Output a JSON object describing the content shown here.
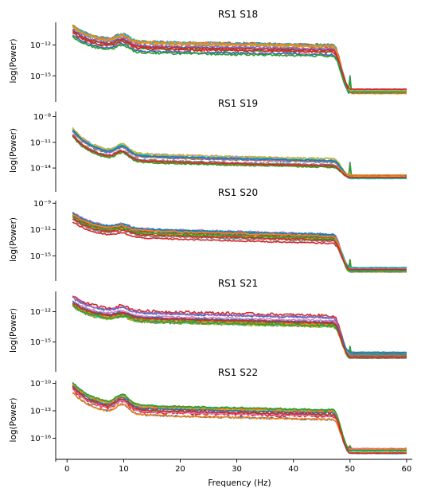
{
  "chart_data": [
    {
      "type": "line",
      "title": "RS1 S18",
      "ylabel": "log(Power)",
      "yscale": "log",
      "y_ticks": [
        {
          "exp": -12,
          "label": "10⁻¹²"
        },
        {
          "exp": -15,
          "label": "10⁻¹⁵"
        }
      ],
      "ylim_exp": [
        -17.3,
        -9.8
      ],
      "profile": {
        "start": -10.6,
        "alpha_peak": 0.6,
        "plateau": -12.1,
        "plateau_end": -12.5,
        "line_noise_spike": 1.5,
        "floor": -16.5
      },
      "series_count": 14
    },
    {
      "type": "line",
      "title": "RS1 S19",
      "ylabel": "log(Power)",
      "yscale": "log",
      "y_ticks": [
        {
          "exp": -8,
          "label": "10⁻⁸"
        },
        {
          "exp": -11,
          "label": "10⁻¹¹"
        },
        {
          "exp": -14,
          "label": "10⁻¹⁴"
        }
      ],
      "ylim_exp": [
        -16.5,
        -7.4
      ],
      "profile": {
        "start": -9.8,
        "alpha_peak": 0.9,
        "plateau": -12.7,
        "plateau_end": -13.4,
        "line_noise_spike": 1.5,
        "floor": -15.0
      },
      "series_count": 14
    },
    {
      "type": "line",
      "title": "RS1 S20",
      "ylabel": "log(Power)",
      "yscale": "log",
      "y_ticks": [
        {
          "exp": -9,
          "label": "10⁻⁹"
        },
        {
          "exp": -12,
          "label": "10⁻¹²"
        },
        {
          "exp": -15,
          "label": "10⁻¹⁵"
        }
      ],
      "ylim_exp": [
        -17.6,
        -8.7
      ],
      "profile": {
        "start": -10.5,
        "alpha_peak": 0.4,
        "plateau": -12.2,
        "plateau_end": -13.0,
        "line_noise_spike": 1.3,
        "floor": -16.6
      },
      "series_count": 14
    },
    {
      "type": "line",
      "title": "RS1 S21",
      "ylabel": "log(Power)",
      "yscale": "log",
      "y_ticks": [
        {
          "exp": -12,
          "label": "10⁻¹²"
        },
        {
          "exp": -15,
          "label": "10⁻¹⁵"
        }
      ],
      "ylim_exp": [
        -17.7,
        -10.0
      ],
      "profile": {
        "start": -10.9,
        "alpha_peak": 0.4,
        "plateau": -12.3,
        "plateau_end": -12.9,
        "line_noise_spike": 0.8,
        "floor": -16.3
      },
      "series_count": 14
    },
    {
      "type": "line",
      "title": "RS1 S22",
      "ylabel": "log(Power)",
      "yscale": "log",
      "y_ticks": [
        {
          "exp": -10,
          "label": "10⁻¹⁰"
        },
        {
          "exp": -13,
          "label": "10⁻¹³"
        },
        {
          "exp": -16,
          "label": "10⁻¹⁶"
        }
      ],
      "ylim_exp": [
        -18.3,
        -9.7
      ],
      "profile": {
        "start": -10.4,
        "alpha_peak": 1.0,
        "plateau": -12.8,
        "plateau_end": -13.4,
        "line_noise_spike": 0.4,
        "floor": -17.4
      },
      "series_count": 14
    }
  ],
  "x_axis": {
    "label": "Frequency (Hz)",
    "xlim": [
      -2,
      61
    ],
    "ticks": [
      {
        "value": 0,
        "label": "0"
      },
      {
        "value": 10,
        "label": "10"
      },
      {
        "value": 20,
        "label": "20"
      },
      {
        "value": 30,
        "label": "30"
      },
      {
        "value": 40,
        "label": "40"
      },
      {
        "value": 50,
        "label": "50"
      },
      {
        "value": 60,
        "label": "60"
      }
    ]
  },
  "series_colors": [
    "#1f77b4",
    "#ff7f0e",
    "#2ca02c",
    "#d62728",
    "#9467bd",
    "#8c564b",
    "#e377c2",
    "#7f7f7f",
    "#bcbd22",
    "#17becf",
    "#1f77b4",
    "#ff7f0e",
    "#2ca02c",
    "#d62728"
  ]
}
